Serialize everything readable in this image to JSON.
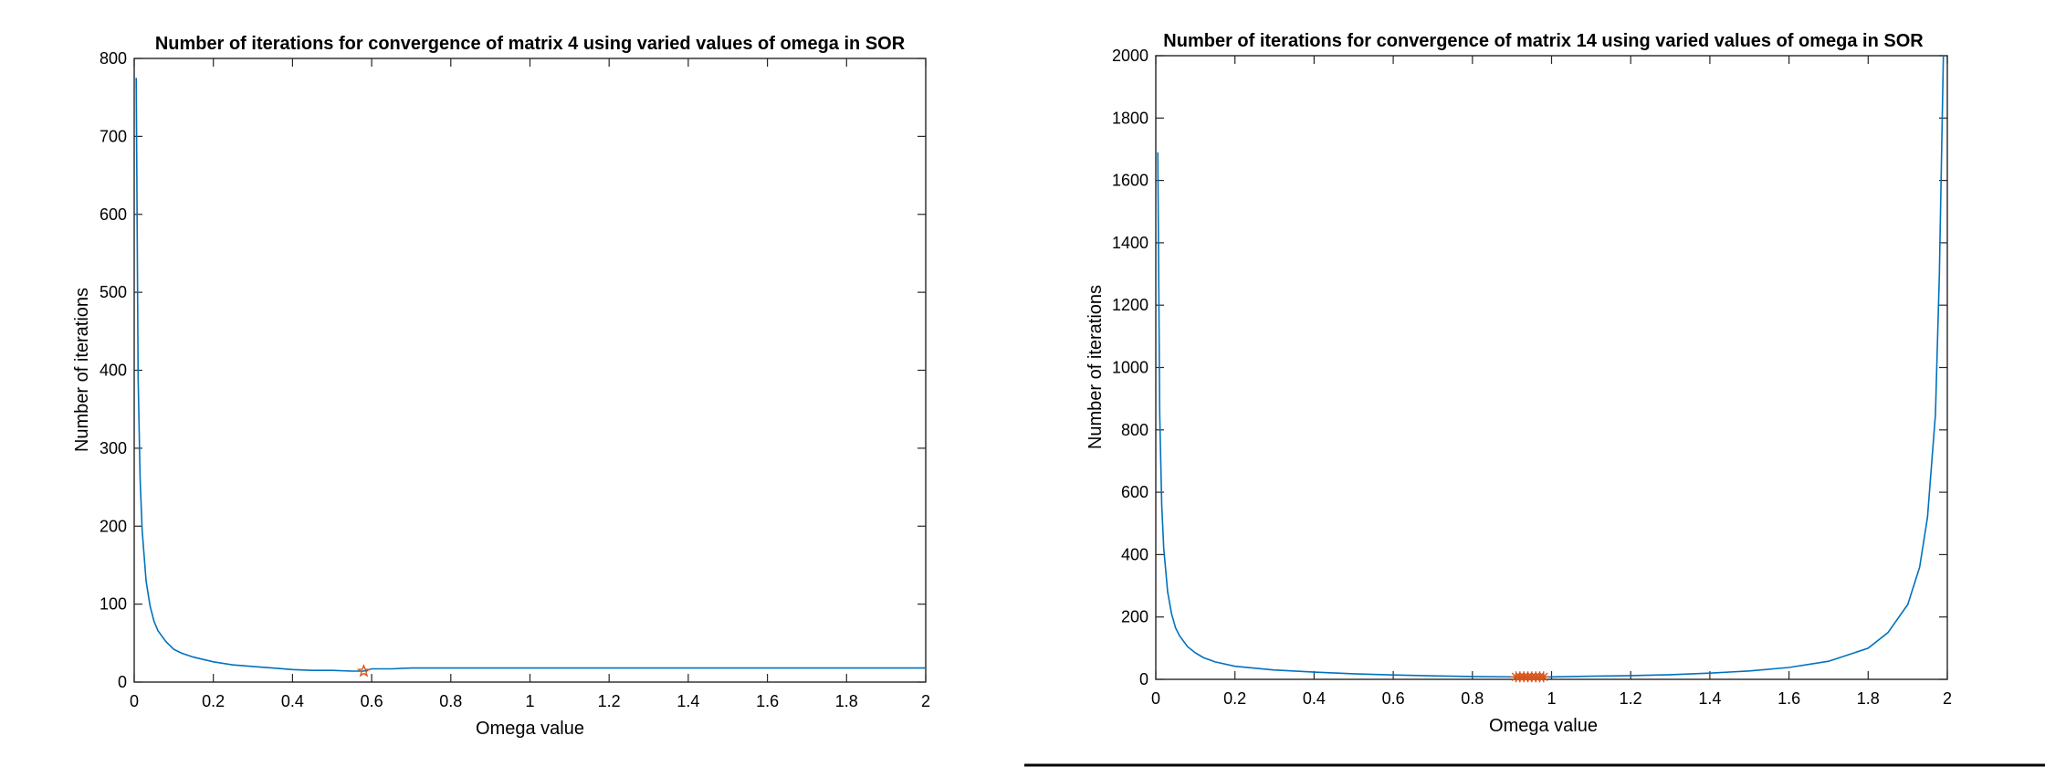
{
  "chart_data": [
    {
      "type": "line",
      "title": "Number of iterations for convergence of matrix 4 using varied values of omega in SOR",
      "xlabel": "Omega value",
      "ylabel": "Number of iterations",
      "xlim": [
        0,
        2
      ],
      "ylim": [
        0,
        800
      ],
      "xticks": [
        "0",
        "0.2",
        "0.4",
        "0.6",
        "0.8",
        "1",
        "1.2",
        "1.4",
        "1.6",
        "1.8",
        "2"
      ],
      "yticks": [
        "0",
        "100",
        "200",
        "300",
        "400",
        "500",
        "600",
        "700",
        "800"
      ],
      "grid": false,
      "colors": {
        "series": "#0072BD",
        "marker": "#D95319"
      },
      "series": [
        {
          "x": [
            0.005,
            0.01,
            0.015,
            0.02,
            0.03,
            0.04,
            0.05,
            0.06,
            0.08,
            0.1,
            0.12,
            0.15,
            0.2,
            0.25,
            0.3,
            0.35,
            0.4,
            0.45,
            0.5,
            0.55,
            0.58,
            0.6,
            0.65,
            0.7,
            0.8,
            0.9,
            1.0,
            1.1,
            1.2,
            1.3,
            1.4,
            1.5,
            1.6,
            1.7,
            1.8,
            1.9,
            2.0
          ],
          "y": [
            775,
            390,
            260,
            195,
            130,
            98,
            78,
            66,
            52,
            42,
            37,
            32,
            26,
            22,
            20,
            18,
            16,
            15,
            15,
            14,
            14,
            17,
            17,
            18,
            18,
            18,
            18,
            18,
            18,
            18,
            18,
            18,
            18,
            18,
            18,
            18,
            18
          ]
        }
      ],
      "markers": [
        {
          "symbol": "star",
          "x": [
            0.58
          ],
          "y": [
            14
          ]
        }
      ]
    },
    {
      "type": "line",
      "title": "Number of iterations for convergence of matrix 14 using varied values of omega in SOR",
      "xlabel": "Omega value",
      "ylabel": "Number of iterations",
      "xlim": [
        0,
        2
      ],
      "ylim": [
        0,
        2000
      ],
      "xticks": [
        "0",
        "0.2",
        "0.4",
        "0.6",
        "0.8",
        "1",
        "1.2",
        "1.4",
        "1.6",
        "1.8",
        "2"
      ],
      "yticks": [
        "0",
        "200",
        "400",
        "600",
        "800",
        "1000",
        "1200",
        "1400",
        "1600",
        "1800",
        "2000"
      ],
      "grid": false,
      "colors": {
        "series": "#0072BD",
        "marker": "#D95319"
      },
      "series": [
        {
          "x": [
            0.005,
            0.01,
            0.015,
            0.02,
            0.03,
            0.04,
            0.05,
            0.06,
            0.08,
            0.1,
            0.12,
            0.15,
            0.2,
            0.3,
            0.4,
            0.5,
            0.6,
            0.7,
            0.8,
            0.9,
            0.95,
            1.0,
            1.1,
            1.2,
            1.3,
            1.4,
            1.5,
            1.6,
            1.7,
            1.8,
            1.85,
            1.9,
            1.93,
            1.95,
            1.97,
            1.98,
            1.99,
            1.995
          ],
          "y": [
            1690,
            850,
            560,
            420,
            280,
            210,
            165,
            140,
            105,
            85,
            70,
            56,
            42,
            30,
            23,
            18,
            14,
            11,
            9,
            8,
            8,
            8,
            10,
            12,
            15,
            20,
            27,
            38,
            58,
            100,
            150,
            240,
            360,
            520,
            850,
            1300,
            2000,
            2000
          ]
        }
      ],
      "markers": [
        {
          "symbol": "asterisk",
          "x": [
            0.91,
            0.92,
            0.93,
            0.94,
            0.95,
            0.96,
            0.97,
            0.98
          ],
          "y": [
            8,
            8,
            8,
            8,
            8,
            8,
            8,
            8
          ]
        }
      ]
    }
  ]
}
